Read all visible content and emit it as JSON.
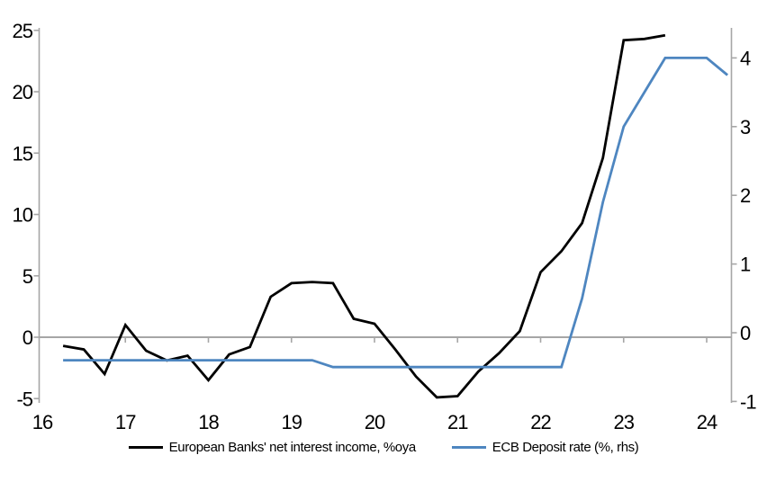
{
  "chart_data": {
    "type": "line",
    "title": "",
    "x_axis": {
      "range": [
        16,
        24.3
      ],
      "ticks": [
        16,
        17,
        18,
        19,
        20,
        21,
        22,
        23,
        24
      ],
      "tick_labels": [
        "16",
        "17",
        "18",
        "19",
        "20",
        "21",
        "22",
        "23",
        "24"
      ]
    },
    "y_left": {
      "range": [
        -5,
        25
      ],
      "ticks": [
        25,
        20,
        15,
        10,
        5,
        0,
        -5
      ],
      "tick_labels": [
        "25",
        "20",
        "15",
        "10",
        "5",
        "0",
        "-5"
      ]
    },
    "y_right": {
      "range": [
        -1,
        4
      ],
      "ticks": [
        4,
        3,
        2,
        1,
        0,
        -1
      ],
      "tick_labels": [
        "4",
        "3",
        "2",
        "1",
        "0",
        "-1"
      ]
    },
    "grid": "off",
    "legend_position": "bottom-center",
    "series": [
      {
        "name": "European Banks' net interest income, %oya",
        "axis": "left",
        "color": "#000000",
        "points": [
          [
            16.25,
            -0.7
          ],
          [
            16.5,
            -1.0
          ],
          [
            16.75,
            -3.0
          ],
          [
            17.0,
            1.0
          ],
          [
            17.25,
            -1.1
          ],
          [
            17.5,
            -1.9
          ],
          [
            17.75,
            -1.5
          ],
          [
            18.0,
            -3.5
          ],
          [
            18.25,
            -1.4
          ],
          [
            18.5,
            -0.8
          ],
          [
            18.75,
            3.3
          ],
          [
            19.0,
            4.4
          ],
          [
            19.25,
            4.5
          ],
          [
            19.5,
            4.4
          ],
          [
            19.75,
            1.5
          ],
          [
            20.0,
            1.1
          ],
          [
            20.25,
            -1.0
          ],
          [
            20.5,
            -3.2
          ],
          [
            20.75,
            -4.9
          ],
          [
            21.0,
            -4.8
          ],
          [
            21.25,
            -2.8
          ],
          [
            21.5,
            -1.3
          ],
          [
            21.75,
            0.5
          ],
          [
            22.0,
            5.3
          ],
          [
            22.25,
            7.0
          ],
          [
            22.5,
            9.3
          ],
          [
            22.75,
            14.6
          ],
          [
            23.0,
            24.2
          ],
          [
            23.25,
            24.3
          ],
          [
            23.5,
            24.6
          ]
        ]
      },
      {
        "name": "ECB Deposit rate (%, rhs)",
        "axis": "right",
        "color": "#4e86c0",
        "points": [
          [
            16.25,
            -0.4
          ],
          [
            19.25,
            -0.4
          ],
          [
            19.5,
            -0.5
          ],
          [
            22.25,
            -0.5
          ],
          [
            22.5,
            0.5
          ],
          [
            22.75,
            1.9
          ],
          [
            23.0,
            3.0
          ],
          [
            23.25,
            3.5
          ],
          [
            23.5,
            4.0
          ],
          [
            24.0,
            4.0
          ],
          [
            24.25,
            3.75
          ]
        ]
      }
    ],
    "colors": {
      "axis_gray": "#a6a6a6",
      "background": "#ffffff",
      "series_black": "#000000",
      "series_blue": "#4e86c0"
    }
  }
}
